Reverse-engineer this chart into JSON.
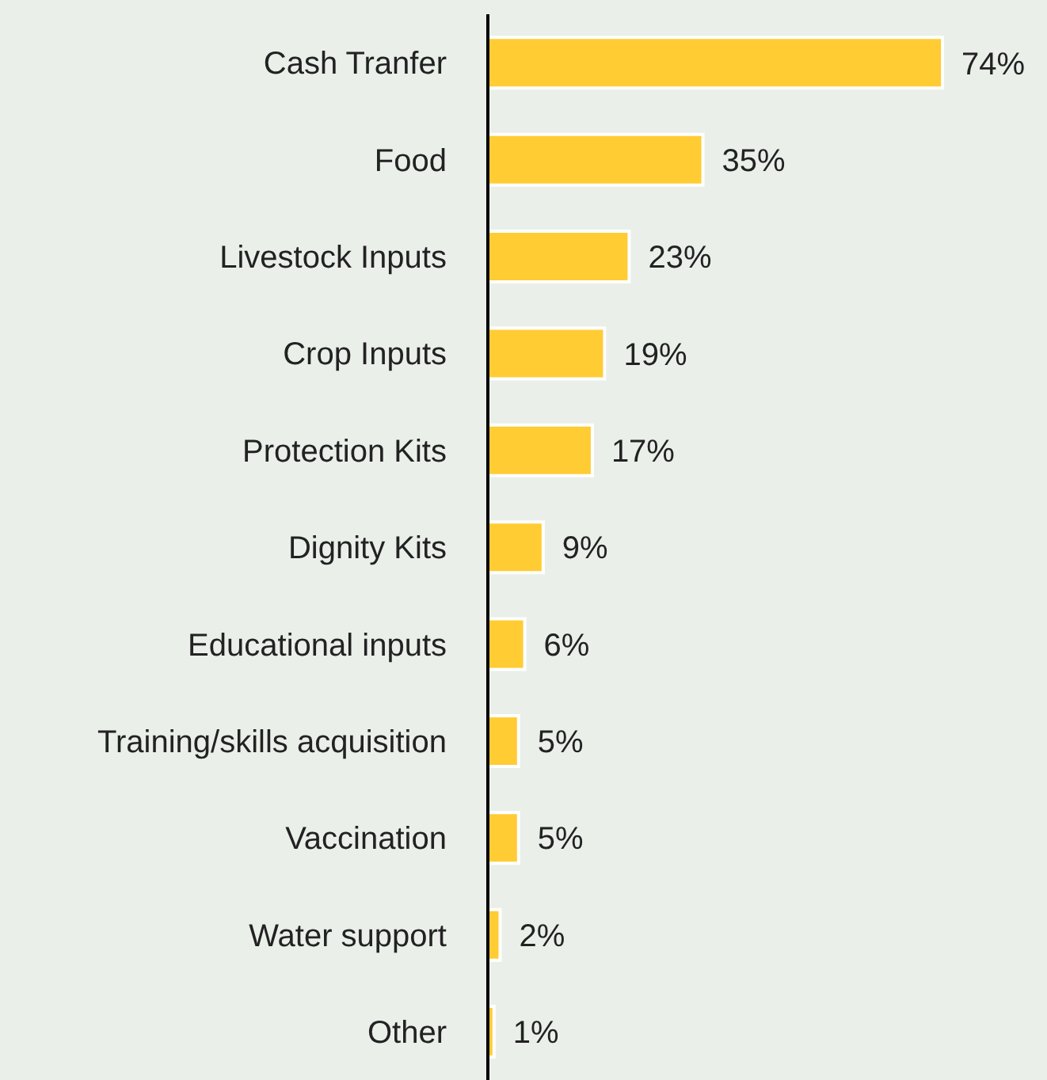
{
  "chart_data": {
    "type": "bar",
    "orientation": "horizontal",
    "categories": [
      "Cash Tranfer",
      "Food",
      "Livestock Inputs",
      "Crop Inputs",
      "Protection Kits",
      "Dignity Kits",
      "Educational inputs",
      "Training/skills acquisition",
      "Vaccination",
      "Water support",
      "Other"
    ],
    "values": [
      74,
      35,
      23,
      19,
      17,
      9,
      6,
      5,
      5,
      2,
      1
    ],
    "value_labels": [
      "74%",
      "35%",
      "23%",
      "19%",
      "17%",
      "9%",
      "6%",
      "5%",
      "5%",
      "2%",
      "1%"
    ],
    "color": "#ffcc33",
    "xlim": [
      0,
      91
    ],
    "tick_labels": "y",
    "grid": false,
    "legend": false
  }
}
